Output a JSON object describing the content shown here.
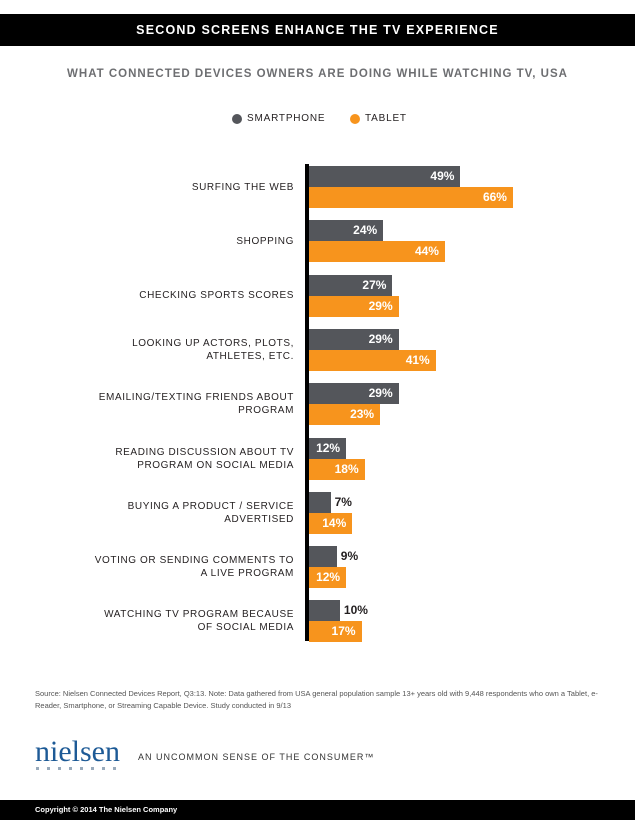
{
  "chart_data": {
    "type": "bar",
    "orientation": "horizontal",
    "title": "SECOND SCREENS ENHANCE THE TV EXPERIENCE",
    "subtitle": "WHAT CONNECTED DEVICES OWNERS ARE DOING WHILE WATCHING TV, USA",
    "categories": [
      "SURFING THE WEB",
      "SHOPPING",
      "CHECKING SPORTS SCORES",
      "LOOKING UP ACTORS, PLOTS, ATHLETES, ETC.",
      "EMAILING/TEXTING FRIENDS ABOUT PROGRAM",
      "READING DISCUSSION ABOUT TV PROGRAM ON SOCIAL MEDIA",
      "BUYING A PRODUCT / SERVICE ADVERTISED",
      "VOTING OR SENDING COMMENTS TO A LIVE PROGRAM",
      "WATCHING TV PROGRAM BECAUSE OF SOCIAL MEDIA"
    ],
    "series": [
      {
        "name": "SMARTPHONE",
        "color": "#54565b",
        "values": [
          49,
          24,
          27,
          29,
          29,
          12,
          7,
          9,
          10
        ],
        "value_labels": [
          "49%",
          "24%",
          "27%",
          "29%",
          "29%",
          "12%",
          "7%",
          "9%",
          "10%"
        ]
      },
      {
        "name": "TABLET",
        "color": "#f7941d",
        "values": [
          66,
          44,
          29,
          41,
          23,
          18,
          14,
          12,
          17
        ],
        "value_labels": [
          "66%",
          "44%",
          "29%",
          "41%",
          "23%",
          "18%",
          "14%",
          "12%",
          "17%"
        ]
      }
    ],
    "legend": "top"
  },
  "source": "Source: Nielsen Connected Devices Report, Q3:13. Note: Data gathered from USA general population sample 13+ years old with 9,448 respondents who own a Tablet, e-Reader, Smartphone, or Streaming Capable Device. Study conducted in 9/13",
  "logo": "nielsen",
  "tagline": "AN UNCOMMON SENSE OF THE CONSUMER™",
  "copyright": "Copyright © 2014 The Nielsen Company"
}
